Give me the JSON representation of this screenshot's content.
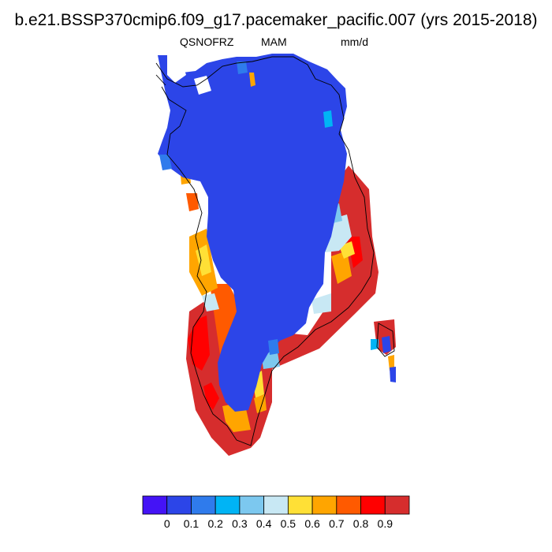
{
  "figure": {
    "title": "b.e21.BSSP370cmip6.f09_g17.pacemaker_pacific.007 (yrs 2015-2018)",
    "variable": "QSNOFRZ",
    "season": "MAM",
    "units": "mm/d"
  },
  "colorbar": {
    "colors": [
      "#4413f6",
      "#2c45e8",
      "#2f7bec",
      "#00b4f5",
      "#7cc8ef",
      "#c8e8f4",
      "#ffe036",
      "#ffa500",
      "#ff5a00",
      "#ff0000",
      "#d62d2d"
    ],
    "labels": [
      "0",
      "0.1",
      "0.2",
      "0.3",
      "0.4",
      "0.5",
      "0.6",
      "0.7",
      "0.8",
      "0.9"
    ]
  }
}
